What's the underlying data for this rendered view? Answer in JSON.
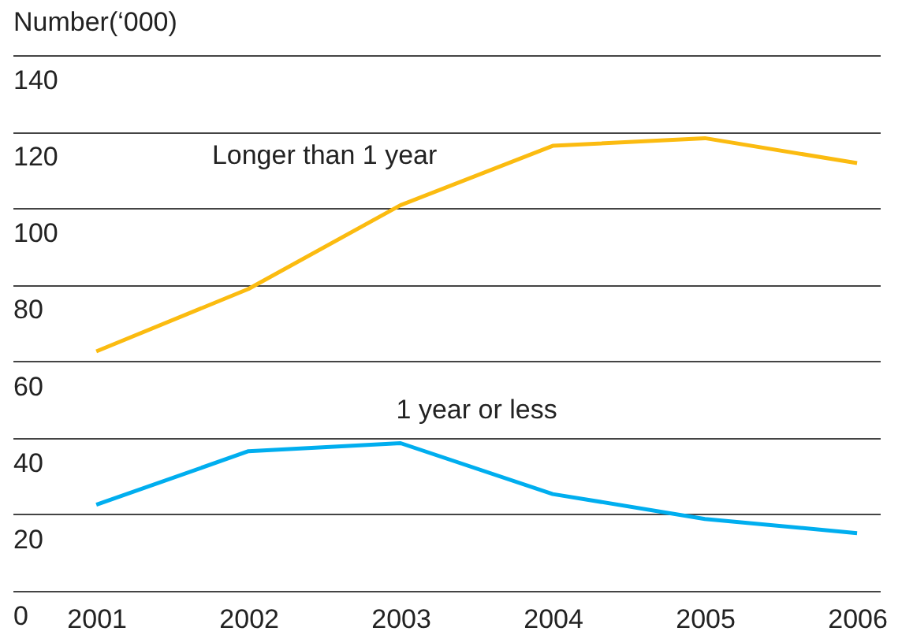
{
  "chart_data": {
    "type": "line",
    "ylabel": "Number(‘000)",
    "x": [
      2001,
      2002,
      2003,
      2004,
      2005,
      2006
    ],
    "xlim": [
      2000.45,
      2006.15
    ],
    "xticks": [
      2001,
      2002,
      2003,
      2004,
      2005,
      2006
    ],
    "ylim": [
      0,
      140
    ],
    "yticks": [
      0,
      20,
      40,
      60,
      80,
      100,
      120,
      140
    ],
    "grid": "y",
    "marker": "none",
    "line_style": "solid",
    "series": [
      {
        "name": "Longer than 1 year",
        "color": "#fbbb10",
        "values": [
          62.6,
          78.9,
          100.8,
          116.3,
          118.3,
          111.8
        ]
      },
      {
        "name": "1 year or less",
        "color": "#00aeef",
        "values": [
          22.5,
          36.5,
          38.6,
          25.3,
          18.8,
          15.1
        ]
      }
    ]
  }
}
